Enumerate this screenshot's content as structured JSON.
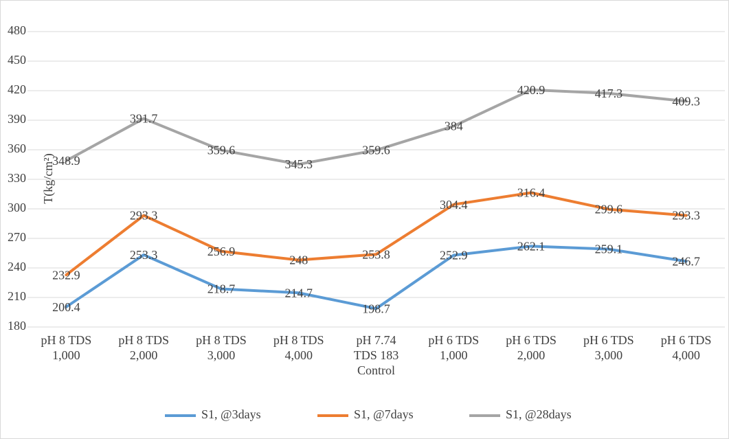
{
  "chart_data": {
    "type": "line",
    "y_label": "T(kg/cm²)",
    "categories": [
      [
        "pH 8 TDS",
        "1,000"
      ],
      [
        "pH 8 TDS",
        "2,000"
      ],
      [
        "pH 8 TDS",
        "3,000"
      ],
      [
        "pH 8 TDS",
        "4,000"
      ],
      [
        "pH 7.74",
        "TDS 183",
        "Control"
      ],
      [
        "pH 6 TDS",
        "1,000"
      ],
      [
        "pH 6 TDS",
        "2,000"
      ],
      [
        "pH 6 TDS",
        "3,000"
      ],
      [
        "pH 6 TDS",
        "4,000"
      ]
    ],
    "series": [
      {
        "name": "S1, @3days",
        "color": "#5b9bd5",
        "values": [
          200.4,
          253.3,
          218.7,
          214.7,
          198.7,
          252.9,
          262.1,
          259.1,
          246.7
        ]
      },
      {
        "name": "S1, @7days",
        "color": "#ed7d31",
        "values": [
          232.9,
          293.3,
          256.9,
          248,
          253.8,
          304.4,
          316.4,
          299.6,
          293.3
        ]
      },
      {
        "name": "S1, @28days",
        "color": "#a5a5a5",
        "values": [
          348.9,
          391.7,
          359.6,
          345.3,
          359.6,
          384,
          420.9,
          417.3,
          409.3
        ]
      }
    ],
    "ylim": [
      180,
      480
    ],
    "yticks": [
      180,
      210,
      240,
      270,
      300,
      330,
      360,
      390,
      420,
      450,
      480
    ],
    "grid": true,
    "legend": "bottom"
  }
}
